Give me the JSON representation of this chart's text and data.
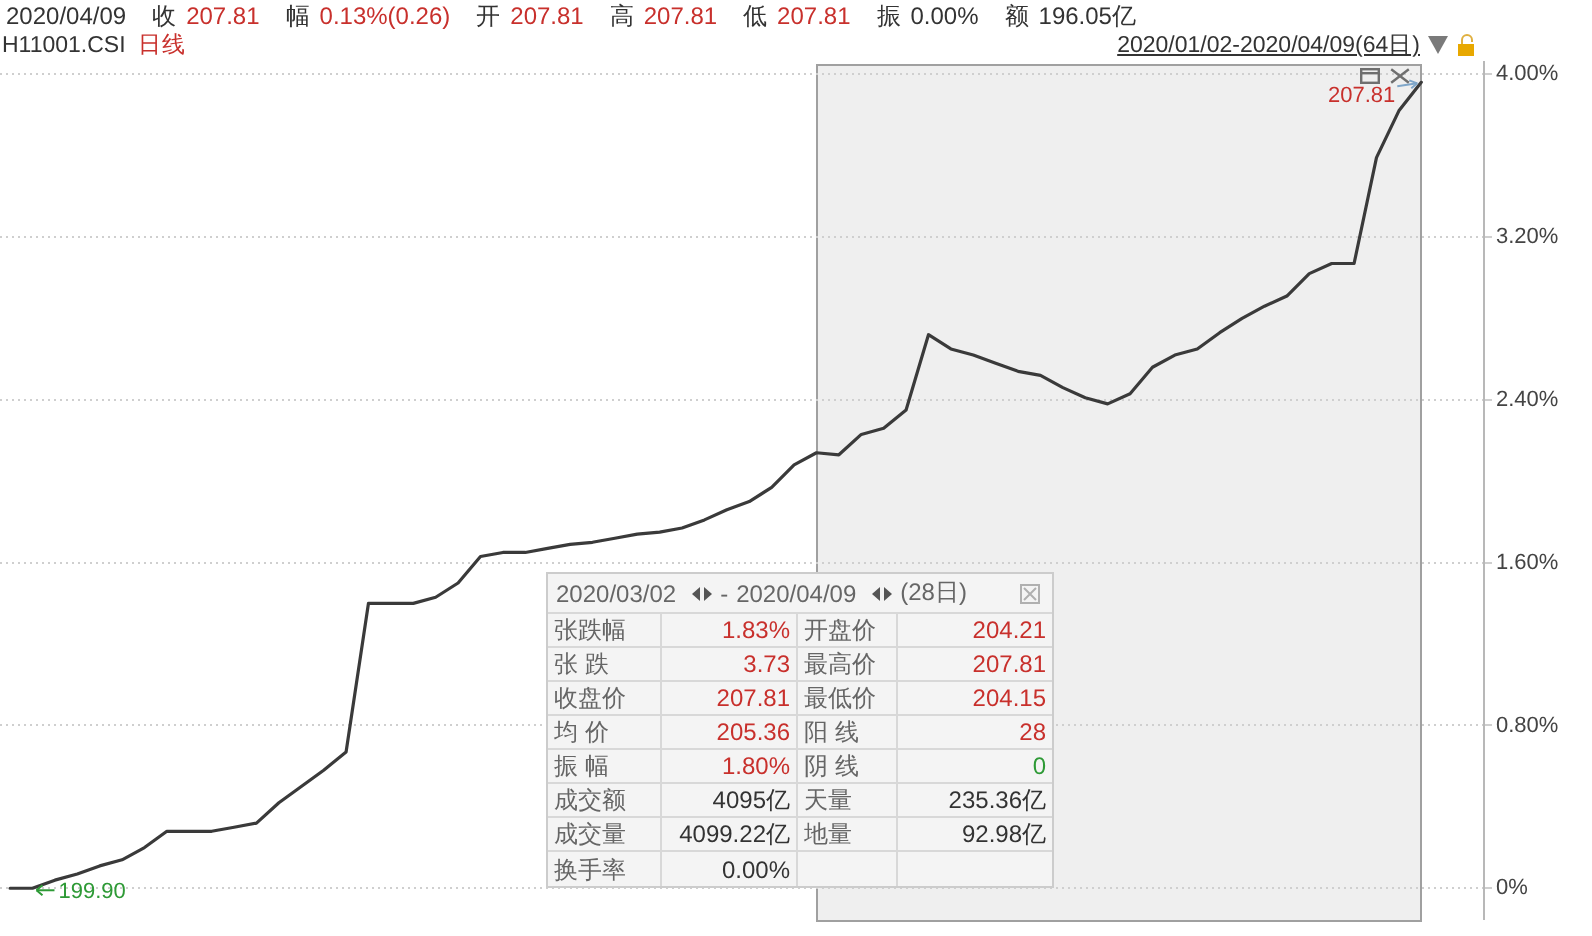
{
  "chart_data": {
    "type": "line",
    "title": "H11001.CSI 日线",
    "categories": [
      null,
      null,
      null,
      null,
      null,
      null,
      null,
      null,
      null,
      null,
      null,
      null,
      null,
      null,
      null,
      null,
      null,
      null,
      null,
      null,
      null,
      null,
      null,
      null,
      null,
      null,
      null,
      null,
      null,
      null,
      null,
      null,
      null,
      null,
      null,
      null,
      null,
      null,
      null,
      null,
      null,
      null,
      null,
      null,
      null,
      null,
      null,
      null,
      null,
      null,
      null,
      null,
      null,
      null,
      null,
      null,
      null,
      null,
      null,
      null,
      null,
      null,
      null,
      null
    ],
    "values": [
      0,
      0,
      0.04,
      0.07,
      0.11,
      0.14,
      0.2,
      0.28,
      0.28,
      0.28,
      0.3,
      0.32,
      0.42,
      0.5,
      0.58,
      0.67,
      1.4,
      1.4,
      1.4,
      1.43,
      1.5,
      1.63,
      1.65,
      1.65,
      1.67,
      1.69,
      1.7,
      1.72,
      1.74,
      1.75,
      1.77,
      1.81,
      1.86,
      1.9,
      1.97,
      2.08,
      2.14,
      2.13,
      2.23,
      2.26,
      2.35,
      2.72,
      2.65,
      2.62,
      2.58,
      2.54,
      2.52,
      2.46,
      2.41,
      2.38,
      2.43,
      2.56,
      2.62,
      2.65,
      2.73,
      2.8,
      2.86,
      2.91,
      3.02,
      3.07,
      3.07,
      3.59,
      3.82,
      3.96
    ],
    "color": "#3a3a3a",
    "ylim": [
      -0.15,
      4.06
    ],
    "yticks": [
      {
        "value": 0,
        "label": "0%"
      },
      {
        "value": 0.8,
        "label": "0.80%"
      },
      {
        "value": 1.6,
        "label": "1.60%"
      },
      {
        "value": 2.4,
        "label": "2.40%"
      },
      {
        "value": 3.2,
        "label": "3.20%"
      },
      {
        "value": 4,
        "label": "4.00%"
      }
    ],
    "grid": "y",
    "tick_labels": "y",
    "marker": "none",
    "annotations": [
      "2020/04/09",
      "收 207.81",
      "幅 0.13%(0.26)",
      "开 207.81",
      "高 207.81",
      "低 207.81",
      "振 0.00%",
      "额 196.05亿",
      "2020/01/02-2020/04/09(64日)",
      "2020/03/02 - 2020/04/09 (28日)",
      "张跌幅",
      "1.83%",
      "开盘价",
      "204.21",
      "张 跌",
      "3.73",
      "最高价",
      "207.81",
      "收盘价",
      "207.81",
      "最低价",
      "204.15",
      "均 价",
      "205.36",
      "阳 线",
      "28",
      "振 幅",
      "1.80%",
      "阴 线",
      "0",
      "成交额",
      "4095亿",
      "天量",
      "235.36亿",
      "成交量",
      "4099.22亿",
      "地量",
      "92.98亿",
      "换手率",
      "0.00%",
      "207.81",
      "199.90"
    ]
  }
}
